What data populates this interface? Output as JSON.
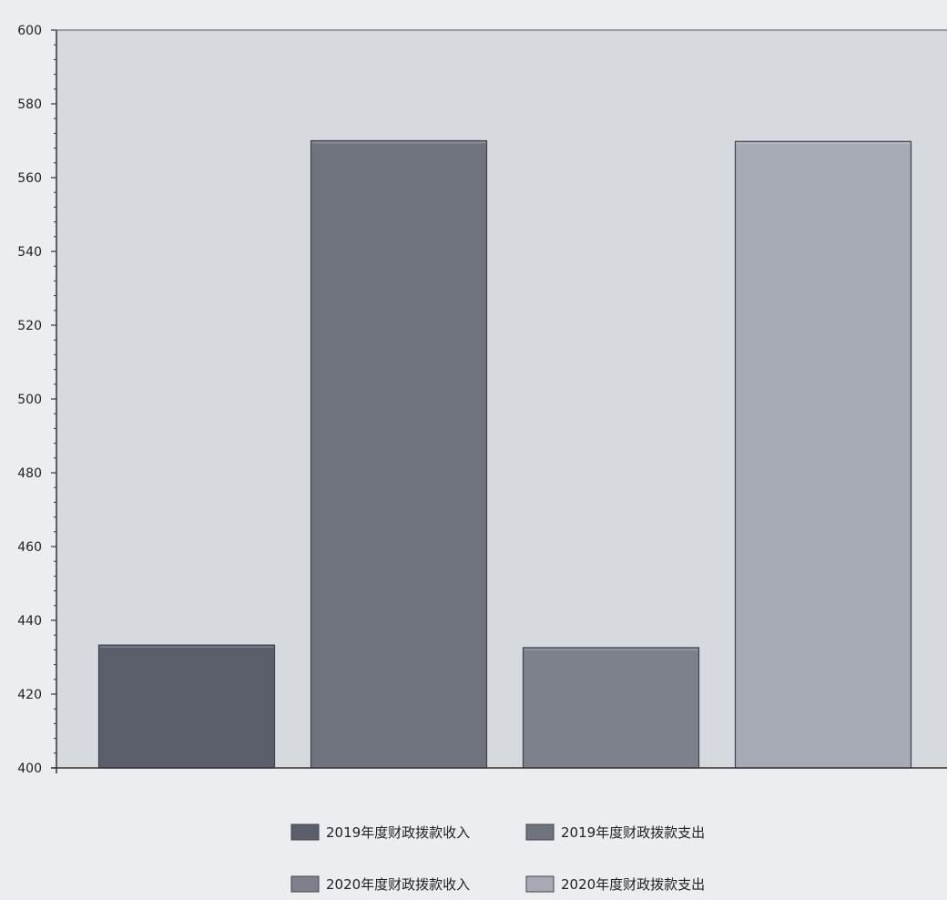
{
  "chart_data": {
    "type": "bar",
    "title": "",
    "xlabel": "",
    "ylabel": "",
    "ylim": [
      400,
      600
    ],
    "yticks": [
      400,
      420,
      440,
      460,
      480,
      500,
      520,
      540,
      560,
      580,
      600
    ],
    "grid": false,
    "legend_position": "bottom",
    "series": [
      {
        "name": "2019年度财政拨款收入",
        "value": 433.3,
        "color": "#5a5f6b"
      },
      {
        "name": "2019年度财政拨款支出",
        "value": 570.0,
        "color": "#6e737e"
      },
      {
        "name": "2020年度财政拨款收入",
        "value": 432.6,
        "color": "#7c818c"
      },
      {
        "name": "2020年度财政拨款支出",
        "value": 569.8,
        "color": "#a6aab4"
      }
    ]
  },
  "colors": {
    "plot_background": "#d6d9de",
    "page_background": "#ecedf0",
    "axis": "#333333"
  }
}
